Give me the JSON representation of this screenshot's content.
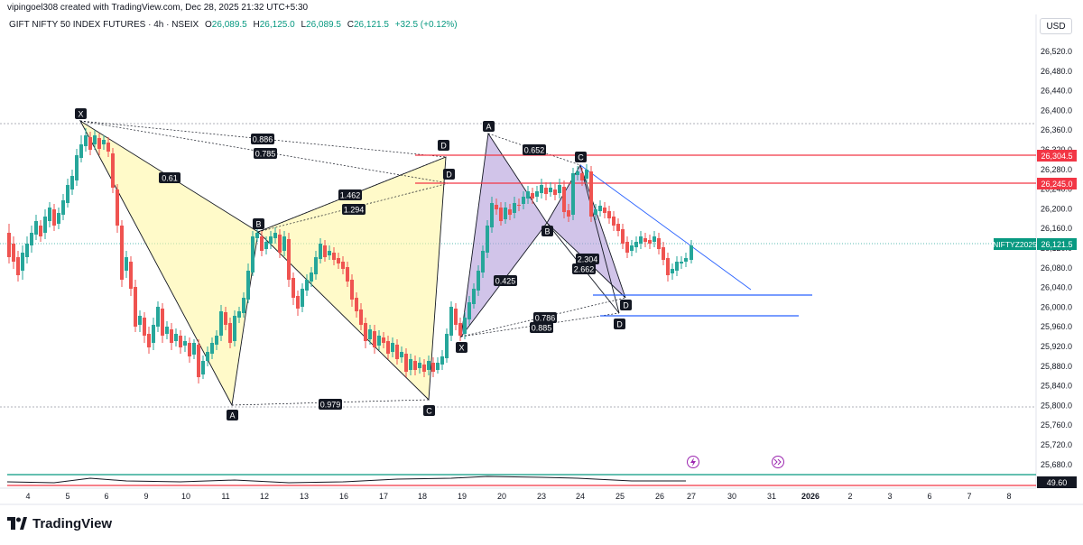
{
  "header": {
    "attribution": "vipingoel308 created with TradingView.com, Dec 28, 2025 21:32 UTC+5:30"
  },
  "symbol": {
    "name": "GIFT NIFTY 50 INDEX FUTURES · 4h · NSEIX",
    "open_label": "O",
    "open": "26,089.5",
    "high_label": "H",
    "high": "26,125.0",
    "low_label": "L",
    "low": "26,089.5",
    "close_label": "C",
    "close": "26,121.5",
    "change": "+32.5 (+0.12%)"
  },
  "currency": "USD",
  "price_axis": {
    "ticks": [
      "26,520.0",
      "26,480.0",
      "26,440.0",
      "26,400.0",
      "26,360.0",
      "26,320.0",
      "26,280.0",
      "26,240.0",
      "26,200.0",
      "26,160.0",
      "26,120.0",
      "26,080.0",
      "26,040.0",
      "26,000.0",
      "25,960.0",
      "25,920.0",
      "25,880.0",
      "25,840.0",
      "25,800.0",
      "25,760.0",
      "25,720.0",
      "25,680.0"
    ],
    "tag_upper": "26,304.5",
    "tag_lower": "26,245.0",
    "symbol_tag": "NIFTYZ2025",
    "last_price": "26,121.5",
    "indicator_value": "49.60"
  },
  "time_axis": [
    "4",
    "5",
    "6",
    "9",
    "10",
    "11",
    "12",
    "13",
    "16",
    "17",
    "18",
    "19",
    "20",
    "23",
    "24",
    "25",
    "26",
    "27",
    "30",
    "31",
    "2026",
    "2",
    "3",
    "6",
    "7",
    "8"
  ],
  "pattern_labels": {
    "X1": "X",
    "A1": "A",
    "B1": "B",
    "C1": "C",
    "D1a": "D",
    "D1b": "D",
    "X2": "X",
    "A2": "A",
    "B2": "B",
    "C2": "C",
    "D2a": "D",
    "D2b": "D"
  },
  "ratios": {
    "r1": "0.61",
    "r2": "0.886",
    "r3": "0.785",
    "r4": "1.462",
    "r5": "1.294",
    "r6": "0.979",
    "r7": "0.652",
    "r8": "0.425",
    "r9": "2.304",
    "r10": "2.662",
    "r11": "0.786",
    "r12": "0.885"
  },
  "brand": {
    "name": "TradingView"
  },
  "colors": {
    "up": "#26a69a",
    "down": "#ef5350",
    "pattern1_fill": "#fff59d",
    "pattern2_fill": "#b39ddb",
    "level_red": "#f23645",
    "level_blue": "#2962ff"
  },
  "icons": [
    "lightning-icon",
    "fast-forward-icon"
  ]
}
